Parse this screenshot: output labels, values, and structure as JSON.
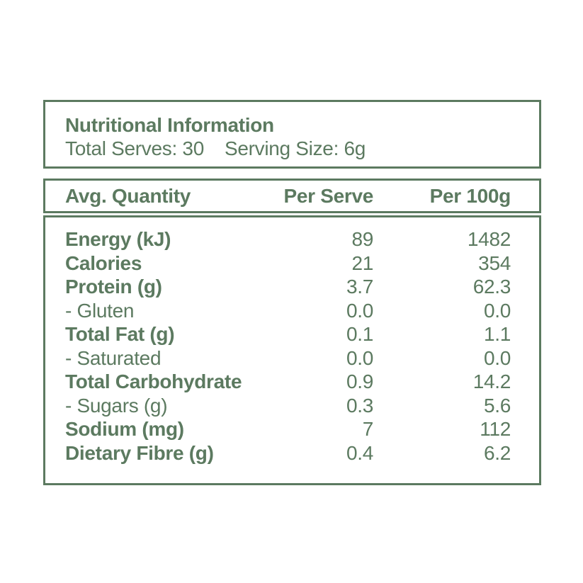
{
  "colors": {
    "text": "#5c7a60",
    "border": "#5c7a60",
    "background": "#ffffff"
  },
  "header": {
    "title": "Nutritional Information",
    "total_serves": "Total Serves: 30",
    "serving_size": "Serving Size: 6g"
  },
  "table": {
    "columns": [
      "Avg. Quantity",
      "Per Serve",
      "Per 100g"
    ],
    "rows": [
      {
        "label": "Energy (kJ)",
        "per_serve": "89",
        "per_100g": "1482",
        "bold": true
      },
      {
        "label": "Calories",
        "per_serve": "21",
        "per_100g": "354",
        "bold": true
      },
      {
        "label": "Protein (g)",
        "per_serve": "3.7",
        "per_100g": "62.3",
        "bold": true
      },
      {
        "label": "- Gluten",
        "per_serve": "0.0",
        "per_100g": "0.0",
        "bold": false
      },
      {
        "label": "Total Fat (g)",
        "per_serve": "0.1",
        "per_100g": "1.1",
        "bold": true
      },
      {
        "label": "- Saturated",
        "per_serve": "0.0",
        "per_100g": "0.0",
        "bold": false
      },
      {
        "label": "Total Carbohydrate",
        "per_serve": "0.9",
        "per_100g": "14.2",
        "bold": true
      },
      {
        "label": "- Sugars (g)",
        "per_serve": "0.3",
        "per_100g": "5.6",
        "bold": false
      },
      {
        "label": "Sodium (mg)",
        "per_serve": "7",
        "per_100g": "112",
        "bold": true
      },
      {
        "label": "Dietary Fibre (g)",
        "per_serve": "0.4",
        "per_100g": "6.2",
        "bold": true
      }
    ]
  }
}
